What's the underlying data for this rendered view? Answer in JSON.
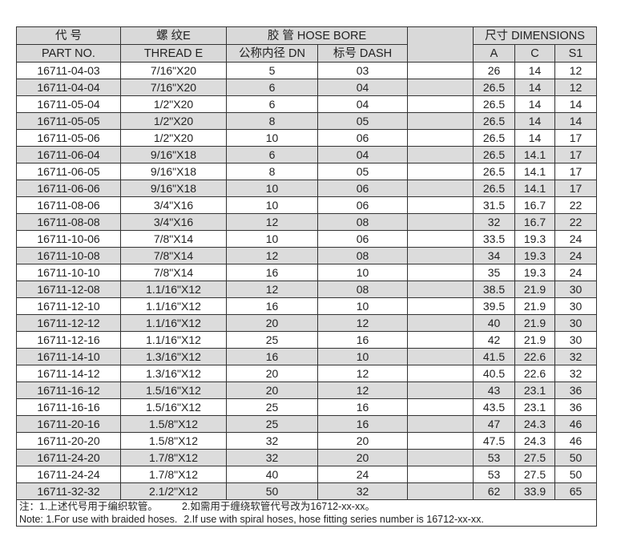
{
  "header": {
    "part_cn": "代 号",
    "part_en": "PART NO.",
    "thread_cn": "螺 纹E",
    "thread_en": "THREAD E",
    "hose_bore": "胶 管 HOSE BORE",
    "dn": "公称内径 DN",
    "dash": "标号 DASH",
    "dimensions": "尺寸  DIMENSIONS",
    "a": "A",
    "c": "C",
    "s1": "S1"
  },
  "rows": [
    [
      "16711-04-03",
      "7/16\"X20",
      "5",
      "03",
      "26",
      "14",
      "12"
    ],
    [
      "16711-04-04",
      "7/16\"X20",
      "6",
      "04",
      "26.5",
      "14",
      "12"
    ],
    [
      "16711-05-04",
      "1/2\"X20",
      "6",
      "04",
      "26.5",
      "14",
      "14"
    ],
    [
      "16711-05-05",
      "1/2\"X20",
      "8",
      "05",
      "26.5",
      "14",
      "14"
    ],
    [
      "16711-05-06",
      "1/2\"X20",
      "10",
      "06",
      "26.5",
      "14",
      "17"
    ],
    [
      "16711-06-04",
      "9/16\"X18",
      "6",
      "04",
      "26.5",
      "14.1",
      "17"
    ],
    [
      "16711-06-05",
      "9/16\"X18",
      "8",
      "05",
      "26.5",
      "14.1",
      "17"
    ],
    [
      "16711-06-06",
      "9/16\"X18",
      "10",
      "06",
      "26.5",
      "14.1",
      "17"
    ],
    [
      "16711-08-06",
      "3/4\"X16",
      "10",
      "06",
      "31.5",
      "16.7",
      "22"
    ],
    [
      "16711-08-08",
      "3/4\"X16",
      "12",
      "08",
      "32",
      "16.7",
      "22"
    ],
    [
      "16711-10-06",
      "7/8\"X14",
      "10",
      "06",
      "33.5",
      "19.3",
      "24"
    ],
    [
      "16711-10-08",
      "7/8\"X14",
      "12",
      "08",
      "34",
      "19.3",
      "24"
    ],
    [
      "16711-10-10",
      "7/8\"X14",
      "16",
      "10",
      "35",
      "19.3",
      "24"
    ],
    [
      "16711-12-08",
      "1.1/16\"X12",
      "12",
      "08",
      "38.5",
      "21.9",
      "30"
    ],
    [
      "16711-12-10",
      "1.1/16\"X12",
      "16",
      "10",
      "39.5",
      "21.9",
      "30"
    ],
    [
      "16711-12-12",
      "1.1/16\"X12",
      "20",
      "12",
      "40",
      "21.9",
      "30"
    ],
    [
      "16711-12-16",
      "1.1/16\"X12",
      "25",
      "16",
      "42",
      "21.9",
      "30"
    ],
    [
      "16711-14-10",
      "1.3/16\"X12",
      "16",
      "10",
      "41.5",
      "22.6",
      "32"
    ],
    [
      "16711-14-12",
      "1.3/16\"X12",
      "20",
      "12",
      "40.5",
      "22.6",
      "32"
    ],
    [
      "16711-16-12",
      "1.5/16\"X12",
      "20",
      "12",
      "43",
      "23.1",
      "36"
    ],
    [
      "16711-16-16",
      "1.5/16\"X12",
      "25",
      "16",
      "43.5",
      "23.1",
      "36"
    ],
    [
      "16711-20-16",
      "1.5/8\"X12",
      "25",
      "16",
      "47",
      "24.3",
      "46"
    ],
    [
      "16711-20-20",
      "1.5/8\"X12",
      "32",
      "20",
      "47.5",
      "24.3",
      "46"
    ],
    [
      "16711-24-20",
      "1.7/8\"X12",
      "32",
      "20",
      "53",
      "27.5",
      "50"
    ],
    [
      "16711-24-24",
      "1.7/8\"X12",
      "40",
      "24",
      "53",
      "27.5",
      "50"
    ],
    [
      "16711-32-32",
      "2.1/2\"X12",
      "50",
      "32",
      "62",
      "33.9",
      "65"
    ]
  ],
  "notes": {
    "cn_1": "注：1.上述代号用于编织软管。",
    "cn_2": "2.如需用于缠绕软管代号改为16712-xx-xx。",
    "en_1": "Note: 1.For use with braided hoses.",
    "en_2": "2.If use with spiral hoses, hose fitting series number is 16712-xx-xx."
  },
  "colors": {
    "header_bg": "#d9d9d9",
    "stripe_bg": "#dcdcdc",
    "border": "#333333"
  }
}
